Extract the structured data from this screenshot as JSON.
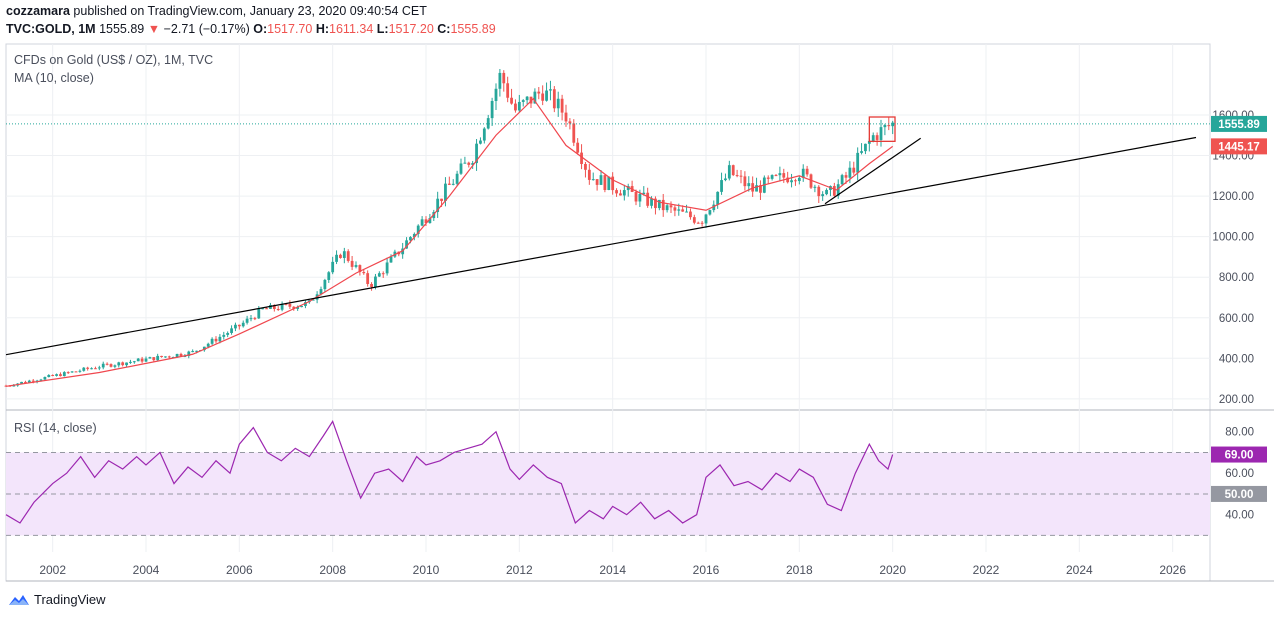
{
  "header": {
    "author": "cozzamara",
    "published_text": "published on TradingView.com, January 23, 2020 09:40:54 CET",
    "symbol": "TVC:GOLD, 1M",
    "last": "1555.89",
    "change_arrow": "▼",
    "change": "−2.71 (−0.17%)",
    "o_label": "O:",
    "o": "1517.70",
    "h_label": "H:",
    "h": "1611.34",
    "l_label": "L:",
    "l": "1517.20",
    "c_label": "C:",
    "c": "1555.89"
  },
  "legends": {
    "main": "CFDs on Gold (US$ / OZ), 1M, TVC",
    "ma": "MA (10, close)",
    "rsi": "RSI (14, close)"
  },
  "brand": "TradingView",
  "colors": {
    "up": "#26a69a",
    "down": "#ef5350",
    "ma": "#f0474e",
    "rsi": "#9c27b0",
    "rsi_band": "#f3e5fb"
  },
  "chart_data": [
    {
      "type": "candlestick",
      "title": "CFDs on Gold (US$ / OZ), 1M, TVC",
      "x_tick_labels": [
        "2002",
        "2004",
        "2006",
        "2008",
        "2010",
        "2012",
        "2014",
        "2016",
        "2018",
        "2020",
        "2022",
        "2024",
        "2026"
      ],
      "y_tick_labels": [
        "200.00",
        "400.00",
        "600.00",
        "800.00",
        "1000.00",
        "1200.00",
        "1400.00",
        "1600.00"
      ],
      "ylim": [
        150,
        1950
      ],
      "xlim": [
        2001.0,
        2026.8
      ],
      "last_price_label": "1555.89",
      "ma_label": "1445.17",
      "series": [
        {
          "name": "MA (10, close)",
          "x": [
            2001.0,
            2003.0,
            2005.0,
            2006.0,
            2007.5,
            2008.5,
            2009.5,
            2010.5,
            2011.5,
            2012.3,
            2013.0,
            2014.0,
            2015.0,
            2016.0,
            2017.0,
            2018.0,
            2018.8,
            2019.5,
            2020.0
          ],
          "y": [
            262,
            330,
            420,
            520,
            680,
            820,
            930,
            1200,
            1500,
            1680,
            1450,
            1280,
            1170,
            1130,
            1240,
            1300,
            1230,
            1360,
            1445
          ]
        }
      ],
      "trendlines": [
        {
          "x": [
            2001.0,
            2026.5
          ],
          "y": [
            418,
            1489
          ]
        },
        {
          "x": [
            2018.55,
            2020.6
          ],
          "y": [
            1162,
            1485
          ]
        }
      ]
    },
    {
      "type": "line",
      "title": "RSI (14, close)",
      "y_tick_labels": [
        "40.00",
        "60.00",
        "80.00"
      ],
      "ylim": [
        22,
        90
      ],
      "band": [
        30,
        70
      ],
      "midline": 50,
      "series": [
        {
          "name": "RSI (14, close)",
          "x": [
            2001.0,
            2001.3,
            2001.6,
            2002.0,
            2002.3,
            2002.6,
            2002.9,
            2003.2,
            2003.5,
            2003.8,
            2004.0,
            2004.3,
            2004.6,
            2004.9,
            2005.2,
            2005.5,
            2005.8,
            2006.0,
            2006.3,
            2006.6,
            2006.9,
            2007.2,
            2007.5,
            2007.8,
            2008.0,
            2008.3,
            2008.6,
            2008.9,
            2009.2,
            2009.5,
            2009.8,
            2010.0,
            2010.3,
            2010.6,
            2010.9,
            2011.2,
            2011.5,
            2011.8,
            2012.0,
            2012.3,
            2012.6,
            2012.9,
            2013.2,
            2013.5,
            2013.8,
            2014.0,
            2014.3,
            2014.6,
            2014.9,
            2015.2,
            2015.5,
            2015.8,
            2016.0,
            2016.3,
            2016.6,
            2016.9,
            2017.2,
            2017.5,
            2017.8,
            2018.0,
            2018.3,
            2018.6,
            2018.9,
            2019.2,
            2019.5,
            2019.7,
            2019.9,
            2020.0
          ],
          "y": [
            40,
            36,
            46,
            55,
            60,
            68,
            58,
            66,
            62,
            68,
            64,
            70,
            55,
            63,
            58,
            66,
            60,
            74,
            82,
            70,
            66,
            72,
            68,
            78,
            85,
            66,
            48,
            60,
            62,
            56,
            68,
            64,
            66,
            70,
            72,
            74,
            80,
            62,
            57,
            64,
            58,
            55,
            36,
            42,
            38,
            44,
            40,
            46,
            38,
            42,
            36,
            40,
            58,
            64,
            54,
            56,
            52,
            60,
            56,
            62,
            58,
            45,
            42,
            60,
            74,
            66,
            62,
            69
          ]
        }
      ]
    }
  ]
}
